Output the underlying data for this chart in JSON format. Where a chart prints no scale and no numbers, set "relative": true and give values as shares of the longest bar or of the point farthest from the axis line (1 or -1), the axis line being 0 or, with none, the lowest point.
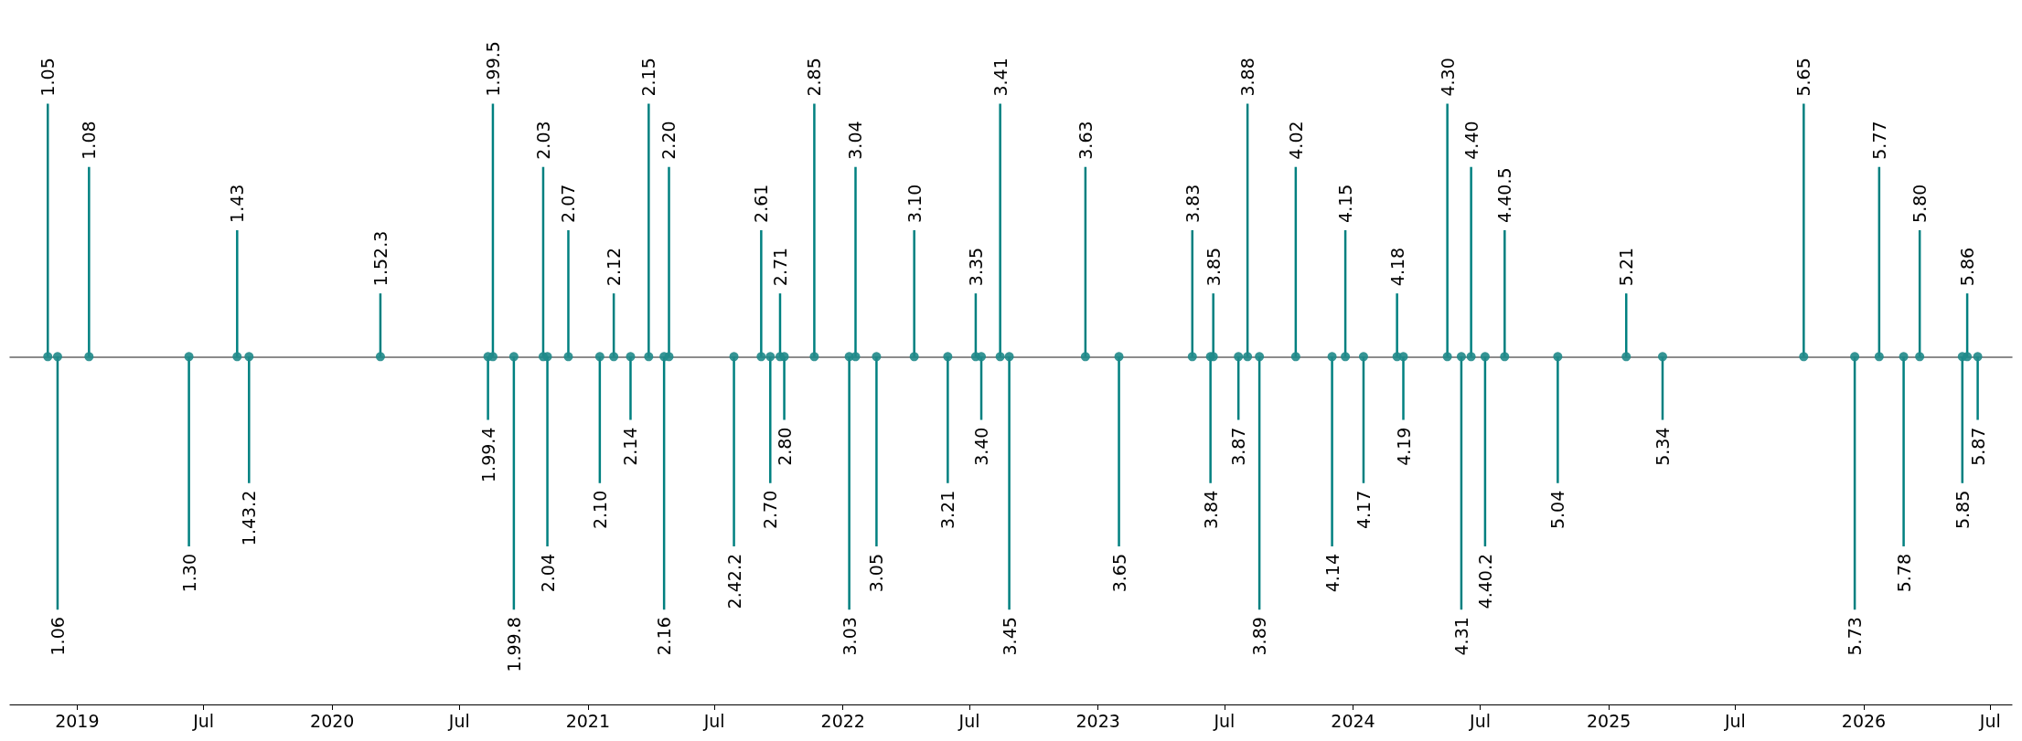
{
  "chart_data": {
    "type": "bar",
    "relative": true,
    "x": [
      "2018-11-20",
      "2018-12-04",
      "2019-01-18",
      "2019-06-10",
      "2019-08-18",
      "2019-09-04",
      "2020-03-10",
      "2020-08-11",
      "2020-08-18",
      "2020-09-17",
      "2020-10-29",
      "2020-11-04",
      "2020-12-04",
      "2021-01-18",
      "2021-02-07",
      "2021-03-03",
      "2021-03-29",
      "2021-04-20",
      "2021-04-27",
      "2021-07-29",
      "2021-09-06",
      "2021-09-19",
      "2021-10-03",
      "2021-10-09",
      "2021-11-21",
      "2022-01-10",
      "2022-01-19",
      "2022-02-18",
      "2022-04-13",
      "2022-05-31",
      "2022-07-10",
      "2022-07-18",
      "2022-08-14",
      "2022-08-27",
      "2022-12-14",
      "2023-01-31",
      "2023-05-16",
      "2023-06-11",
      "2023-06-15",
      "2023-07-21",
      "2023-08-03",
      "2023-08-20",
      "2023-10-11",
      "2023-12-02",
      "2023-12-21",
      "2024-01-16",
      "2024-03-04",
      "2024-03-13",
      "2024-05-15",
      "2024-06-04",
      "2024-06-18",
      "2024-07-08",
      "2024-08-05",
      "2024-10-20",
      "2025-01-26",
      "2025-03-19",
      "2025-10-07",
      "2025-12-19",
      "2026-01-23",
      "2026-02-27",
      "2026-03-22",
      "2026-05-22",
      "2026-05-29",
      "2026-06-13"
    ],
    "series": [
      {
        "color": "#008080",
        "values": [
          1,
          -1,
          0.75,
          -0.75,
          0.5,
          -0.5,
          0.25,
          -0.25,
          1,
          -1,
          0.75,
          -0.75,
          0.5,
          -0.5,
          0.25,
          -0.25,
          1,
          -1,
          0.75,
          -0.75,
          0.5,
          -0.5,
          0.25,
          -0.25,
          1,
          -1,
          0.75,
          -0.75,
          0.5,
          -0.5,
          0.25,
          -0.25,
          1,
          -1,
          0.75,
          -0.75,
          0.5,
          -0.5,
          0.25,
          -0.25,
          1,
          -1,
          0.75,
          -0.75,
          0.5,
          -0.5,
          0.25,
          -0.25,
          1,
          -1,
          0.75,
          -0.75,
          0.5,
          -0.5,
          0.25,
          -0.25,
          1,
          -1,
          0.75,
          -0.75,
          0.5,
          -0.5,
          0.25,
          -0.25
        ]
      },
      {
        "type": "scatter",
        "color": "#1f8a8a",
        "marker": "circle",
        "values": [
          0,
          0,
          0,
          0,
          0,
          0,
          0,
          0,
          0,
          0,
          0,
          0,
          0,
          0,
          0,
          0,
          0,
          0,
          0,
          0,
          0,
          0,
          0,
          0,
          0,
          0,
          0,
          0,
          0,
          0,
          0,
          0,
          0,
          0,
          0,
          0,
          0,
          0,
          0,
          0,
          0,
          0,
          0,
          0,
          0,
          0,
          0,
          0,
          0,
          0,
          0,
          0,
          0,
          0,
          0,
          0,
          0,
          0,
          0,
          0,
          0,
          0,
          0,
          0
        ]
      }
    ],
    "annotations": [
      {
        "text": "1.05",
        "x": "2018-11-20",
        "y": 1
      },
      {
        "text": "1.06",
        "x": "2018-12-04",
        "y": -1
      },
      {
        "text": "1.08",
        "x": "2019-01-18",
        "y": 0.75
      },
      {
        "text": "1.30",
        "x": "2019-06-10",
        "y": -0.75
      },
      {
        "text": "1.43",
        "x": "2019-08-18",
        "y": 0.5
      },
      {
        "text": "1.43.2",
        "x": "2019-09-04",
        "y": -0.5
      },
      {
        "text": "1.52.3",
        "x": "2020-03-10",
        "y": 0.25
      },
      {
        "text": "1.99.4",
        "x": "2020-08-11",
        "y": -0.25
      },
      {
        "text": "1.99.5",
        "x": "2020-08-18",
        "y": 1
      },
      {
        "text": "1.99.8",
        "x": "2020-09-17",
        "y": -1
      },
      {
        "text": "2.03",
        "x": "2020-10-29",
        "y": 0.75
      },
      {
        "text": "2.04",
        "x": "2020-11-04",
        "y": -0.75
      },
      {
        "text": "2.07",
        "x": "2020-12-04",
        "y": 0.5
      },
      {
        "text": "2.10",
        "x": "2021-01-18",
        "y": -0.5
      },
      {
        "text": "2.12",
        "x": "2021-02-07",
        "y": 0.25
      },
      {
        "text": "2.14",
        "x": "2021-03-03",
        "y": -0.25
      },
      {
        "text": "2.15",
        "x": "2021-03-29",
        "y": 1
      },
      {
        "text": "2.16",
        "x": "2021-04-20",
        "y": -1
      },
      {
        "text": "2.20",
        "x": "2021-04-27",
        "y": 0.75
      },
      {
        "text": "2.42.2",
        "x": "2021-07-29",
        "y": -0.75
      },
      {
        "text": "2.61",
        "x": "2021-09-06",
        "y": 0.5
      },
      {
        "text": "2.70",
        "x": "2021-09-19",
        "y": -0.5
      },
      {
        "text": "2.71",
        "x": "2021-10-03",
        "y": 0.25
      },
      {
        "text": "2.80",
        "x": "2021-10-09",
        "y": -0.25
      },
      {
        "text": "2.85",
        "x": "2021-11-21",
        "y": 1
      },
      {
        "text": "3.03",
        "x": "2022-01-10",
        "y": -1
      },
      {
        "text": "3.04",
        "x": "2022-01-19",
        "y": 0.75
      },
      {
        "text": "3.05",
        "x": "2022-02-18",
        "y": -0.75
      },
      {
        "text": "3.10",
        "x": "2022-04-13",
        "y": 0.5
      },
      {
        "text": "3.21",
        "x": "2022-05-31",
        "y": -0.5
      },
      {
        "text": "3.35",
        "x": "2022-07-10",
        "y": 0.25
      },
      {
        "text": "3.40",
        "x": "2022-07-18",
        "y": -0.25
      },
      {
        "text": "3.41",
        "x": "2022-08-14",
        "y": 1
      },
      {
        "text": "3.45",
        "x": "2022-08-27",
        "y": -1
      },
      {
        "text": "3.63",
        "x": "2022-12-14",
        "y": 0.75
      },
      {
        "text": "3.65",
        "x": "2023-01-31",
        "y": -0.75
      },
      {
        "text": "3.83",
        "x": "2023-05-16",
        "y": 0.5
      },
      {
        "text": "3.84",
        "x": "2023-06-11",
        "y": -0.5
      },
      {
        "text": "3.85",
        "x": "2023-06-15",
        "y": 0.25
      },
      {
        "text": "3.87",
        "x": "2023-07-21",
        "y": -0.25
      },
      {
        "text": "3.88",
        "x": "2023-08-03",
        "y": 1
      },
      {
        "text": "3.89",
        "x": "2023-08-20",
        "y": -1
      },
      {
        "text": "4.02",
        "x": "2023-10-11",
        "y": 0.75
      },
      {
        "text": "4.14",
        "x": "2023-12-02",
        "y": -0.75
      },
      {
        "text": "4.15",
        "x": "2023-12-21",
        "y": 0.5
      },
      {
        "text": "4.17",
        "x": "2024-01-16",
        "y": -0.5
      },
      {
        "text": "4.18",
        "x": "2024-03-04",
        "y": 0.25
      },
      {
        "text": "4.19",
        "x": "2024-03-13",
        "y": -0.25
      },
      {
        "text": "4.30",
        "x": "2024-05-15",
        "y": 1
      },
      {
        "text": "4.31",
        "x": "2024-06-04",
        "y": -1
      },
      {
        "text": "4.40",
        "x": "2024-06-18",
        "y": 0.75
      },
      {
        "text": "4.40.2",
        "x": "2024-07-08",
        "y": -0.75
      },
      {
        "text": "4.40.5",
        "x": "2024-08-05",
        "y": 0.5
      },
      {
        "text": "5.04",
        "x": "2024-10-20",
        "y": -0.5
      },
      {
        "text": "5.21",
        "x": "2025-01-26",
        "y": 0.25
      },
      {
        "text": "5.34",
        "x": "2025-03-19",
        "y": -0.25
      },
      {
        "text": "5.65",
        "x": "2025-10-07",
        "y": 1
      },
      {
        "text": "5.73",
        "x": "2025-12-19",
        "y": -1
      },
      {
        "text": "5.77",
        "x": "2026-01-23",
        "y": 0.75
      },
      {
        "text": "5.78",
        "x": "2026-02-27",
        "y": -0.75
      },
      {
        "text": "5.80",
        "x": "2026-03-22",
        "y": 0.5
      },
      {
        "text": "5.85",
        "x": "2026-05-22",
        "y": -0.5
      },
      {
        "text": "5.86",
        "x": "2026-05-29",
        "y": 0.25
      },
      {
        "text": "5.87",
        "x": "2026-06-13",
        "y": -0.25
      }
    ],
    "xlim": [
      "2018-09-27",
      "2026-08-01"
    ],
    "xticks": [
      {
        "value": "2019-01-01",
        "label": "2019"
      },
      {
        "value": "2019-07-01",
        "label": "Jul"
      },
      {
        "value": "2020-01-01",
        "label": "2020"
      },
      {
        "value": "2020-07-01",
        "label": "Jul"
      },
      {
        "value": "2021-01-01",
        "label": "2021"
      },
      {
        "value": "2021-07-01",
        "label": "Jul"
      },
      {
        "value": "2022-01-01",
        "label": "2022"
      },
      {
        "value": "2022-07-01",
        "label": "Jul"
      },
      {
        "value": "2023-01-01",
        "label": "2023"
      },
      {
        "value": "2023-07-01",
        "label": "Jul"
      },
      {
        "value": "2024-01-01",
        "label": "2024"
      },
      {
        "value": "2024-07-01",
        "label": "Jul"
      },
      {
        "value": "2025-01-01",
        "label": "2025"
      },
      {
        "value": "2025-07-01",
        "label": "Jul"
      },
      {
        "value": "2026-01-01",
        "label": "2026"
      },
      {
        "value": "2026-07-01",
        "label": "Jul"
      }
    ]
  }
}
